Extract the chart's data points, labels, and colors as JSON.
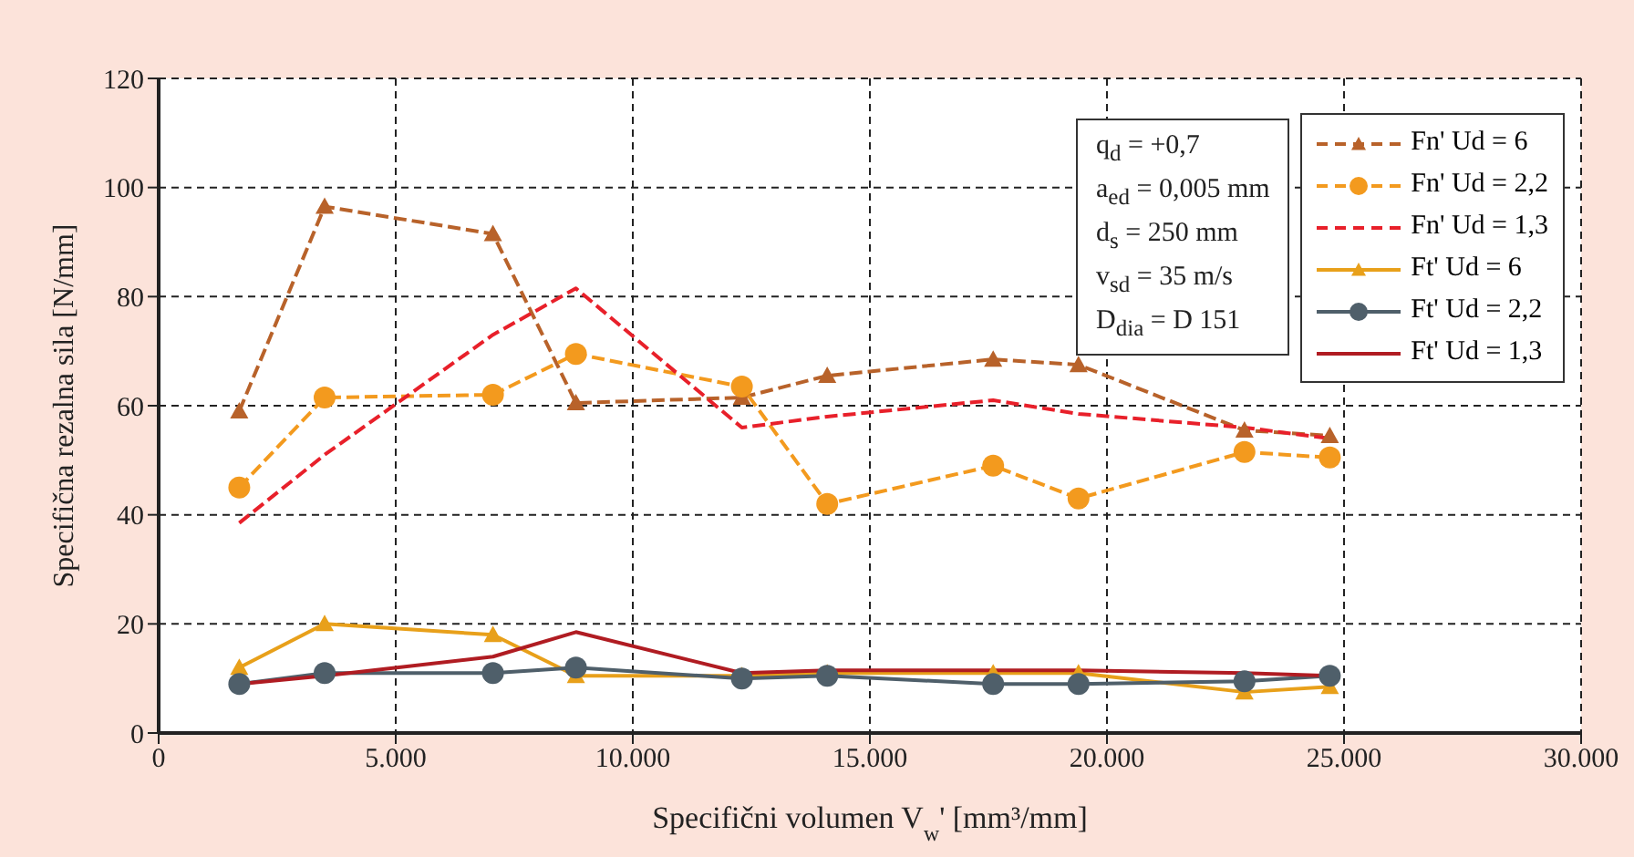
{
  "chart_data": {
    "type": "line",
    "xlabel": "Specifični volumen V$_{w}$' [mm³/mm]",
    "ylabel": "Specifična rezalna sila  [N/mm]",
    "x": [
      1700,
      3500,
      7050,
      8800,
      12300,
      14100,
      17600,
      19400,
      22900,
      24700
    ],
    "xlim": [
      0,
      30000
    ],
    "xticks": [
      {
        "value": 0,
        "label": "0"
      },
      {
        "value": 5000,
        "label": "5.000"
      },
      {
        "value": 10000,
        "label": "10.000"
      },
      {
        "value": 15000,
        "label": "15.000"
      },
      {
        "value": 20000,
        "label": "20.000"
      },
      {
        "value": 25000,
        "label": "25.000"
      },
      {
        "value": 30000,
        "label": "30.000"
      }
    ],
    "ylim": [
      0,
      120
    ],
    "yticks": [
      0,
      20,
      40,
      60,
      80,
      100,
      120
    ],
    "grid": true,
    "legend": "top right",
    "annotations": [
      "q$_{d}$ = +0,7",
      "a$_{ed}$ = 0,005 mm",
      "d$_{s}$ = 250 mm",
      "v$_{sd}$ = 35 m/s",
      "D$_{dia}$ = D 151"
    ],
    "series": [
      {
        "name": "Fn' Ud = 6",
        "color": "#b8622a",
        "line_style": "dashed",
        "marker": "triangle",
        "values": [
          59,
          96.5,
          91.5,
          60.5,
          61.5,
          65.5,
          68.5,
          67.5,
          55.5,
          54.5
        ]
      },
      {
        "name": "Fn' Ud = 2,2",
        "color": "#f39a1e",
        "line_style": "dashed",
        "marker": "circle",
        "values": [
          45,
          61.5,
          62,
          69.5,
          63.5,
          42,
          49,
          43,
          51.5,
          50.5
        ]
      },
      {
        "name": "Fn' Ud = 1,3",
        "color": "#e8202a",
        "line_style": "dashed",
        "marker": "none",
        "values": [
          38.5,
          51,
          73,
          81.5,
          56,
          58,
          61,
          58.5,
          56,
          54
        ]
      },
      {
        "name": "Ft' Ud = 6",
        "color": "#e8a01a",
        "line_style": "solid",
        "marker": "triangle",
        "values": [
          12,
          20,
          18,
          10.5,
          10.5,
          11,
          11,
          11,
          7.5,
          8.5
        ]
      },
      {
        "name": "Ft' Ud = 2,2",
        "color": "#4f5f6a",
        "line_style": "solid",
        "marker": "circle",
        "values": [
          9,
          11,
          11,
          12,
          10,
          10.5,
          9,
          9,
          9.5,
          10.5
        ]
      },
      {
        "name": "Ft' Ud = 1,3",
        "color": "#b01c22",
        "line_style": "solid",
        "marker": "none",
        "values": [
          9,
          10.5,
          14,
          18.5,
          11,
          11.5,
          11.5,
          11.5,
          11,
          10.5
        ]
      }
    ]
  }
}
